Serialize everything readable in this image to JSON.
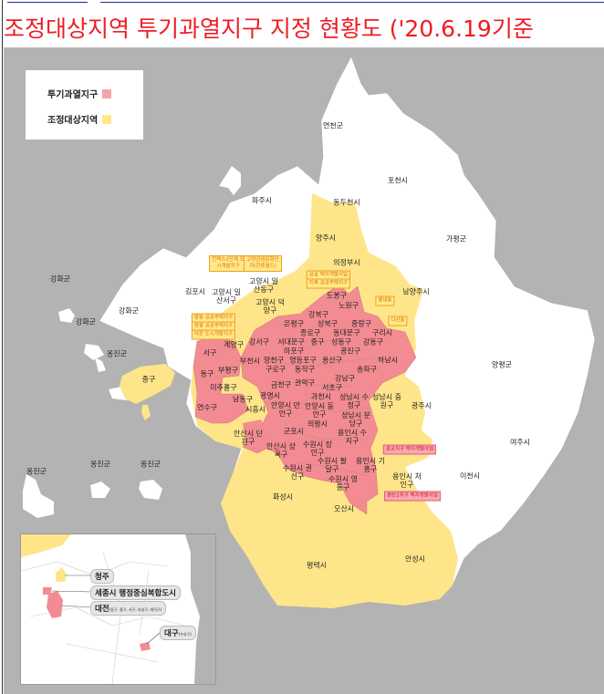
{
  "title": "조정대상지역 투기과열지구 지정 현황도 ('20.6.19기준",
  "legend": {
    "items": [
      {
        "label": "투기과열지구",
        "color": "#f4a4a8"
      },
      {
        "label": "조정대상지역",
        "color": "#ffe98c"
      }
    ]
  },
  "colors": {
    "speculation_overheated": "#f28b92",
    "adjustment_target": "#ffe58a",
    "unregulated": "#ffffff",
    "sea": "#b3b3b3",
    "title": "#ee1c25"
  },
  "regions": [
    {
      "name": "연천군",
      "status": "none"
    },
    {
      "name": "포천시",
      "status": "none"
    },
    {
      "name": "동두천시",
      "status": "none"
    },
    {
      "name": "파주시",
      "status": "none"
    },
    {
      "name": "양주시",
      "status": "adjustment"
    },
    {
      "name": "가평군",
      "status": "none"
    },
    {
      "name": "의정부시",
      "status": "adjustment"
    },
    {
      "name": "강화군",
      "status": "none"
    },
    {
      "name": "강화군",
      "status": "none"
    },
    {
      "name": "강화군",
      "status": "none"
    },
    {
      "name": "김포시",
      "status": "none"
    },
    {
      "name": "고양시 일산동구",
      "status": "adjustment"
    },
    {
      "name": "고양시 일산서구",
      "status": "adjustment"
    },
    {
      "name": "고양시 덕양구",
      "status": "adjustment"
    },
    {
      "name": "남양주시",
      "status": "adjustment"
    },
    {
      "name": "도봉구",
      "status": "overheated"
    },
    {
      "name": "노원구",
      "status": "overheated"
    },
    {
      "name": "강북구",
      "status": "overheated"
    },
    {
      "name": "은평구",
      "status": "overheated"
    },
    {
      "name": "성북구",
      "status": "overheated"
    },
    {
      "name": "종로구",
      "status": "overheated"
    },
    {
      "name": "중랑구",
      "status": "overheated"
    },
    {
      "name": "동대문구",
      "status": "overheated"
    },
    {
      "name": "서대문구",
      "status": "overheated"
    },
    {
      "name": "구리시",
      "status": "overheated"
    },
    {
      "name": "마포구",
      "status": "overheated"
    },
    {
      "name": "중구",
      "status": "overheated"
    },
    {
      "name": "성동구",
      "status": "overheated"
    },
    {
      "name": "광진구",
      "status": "overheated"
    },
    {
      "name": "강동구",
      "status": "overheated"
    },
    {
      "name": "강서구",
      "status": "overheated"
    },
    {
      "name": "계양구",
      "status": "adjustment"
    },
    {
      "name": "옹진군",
      "status": "none"
    },
    {
      "name": "서구",
      "status": "overheated"
    },
    {
      "name": "양천구",
      "status": "overheated"
    },
    {
      "name": "영등포구",
      "status": "overheated"
    },
    {
      "name": "용산구",
      "status": "overheated"
    },
    {
      "name": "하남시",
      "status": "overheated"
    },
    {
      "name": "부평구",
      "status": "adjustment"
    },
    {
      "name": "부천시",
      "status": "adjustment"
    },
    {
      "name": "동구",
      "status": "adjustment"
    },
    {
      "name": "구로구",
      "status": "overheated"
    },
    {
      "name": "동작구",
      "status": "overheated"
    },
    {
      "name": "송파구",
      "status": "overheated"
    },
    {
      "name": "양평군",
      "status": "none"
    },
    {
      "name": "중구",
      "status": "adjustment"
    },
    {
      "name": "강남구",
      "status": "overheated"
    },
    {
      "name": "관악구",
      "status": "overheated"
    },
    {
      "name": "서초구",
      "status": "overheated"
    },
    {
      "name": "미추홀구",
      "status": "adjustment"
    },
    {
      "name": "남동구",
      "status": "overheated"
    },
    {
      "name": "금천구",
      "status": "overheated"
    },
    {
      "name": "광명시",
      "status": "overheated"
    },
    {
      "name": "과천시",
      "status": "overheated"
    },
    {
      "name": "성남시 수정구",
      "status": "overheated"
    },
    {
      "name": "성남시 중원구",
      "status": "adjustment"
    },
    {
      "name": "광주시",
      "status": "none"
    },
    {
      "name": "연수구",
      "status": "overheated"
    },
    {
      "name": "시흥시",
      "status": "adjustment"
    },
    {
      "name": "안양시 만안구",
      "status": "overheated"
    },
    {
      "name": "안양시 동안구",
      "status": "overheated"
    },
    {
      "name": "성남시 분당구",
      "status": "overheated"
    },
    {
      "name": "의왕시",
      "status": "overheated"
    },
    {
      "name": "군포시",
      "status": "overheated"
    },
    {
      "name": "용인시 수지구",
      "status": "overheated"
    },
    {
      "name": "안산시 단원구",
      "status": "overheated"
    },
    {
      "name": "안산시 상록구",
      "status": "adjustment"
    },
    {
      "name": "수원시 장안구",
      "status": "overheated"
    },
    {
      "name": "수원시 팔달구",
      "status": "overheated"
    },
    {
      "name": "여주시",
      "status": "none"
    },
    {
      "name": "수원시 권선구",
      "status": "overheated"
    },
    {
      "name": "수원시 영통구",
      "status": "overheated"
    },
    {
      "name": "용인시 기흥구",
      "status": "overheated"
    },
    {
      "name": "옹진군",
      "status": "none"
    },
    {
      "name": "옹진군",
      "status": "none"
    },
    {
      "name": "옹진군",
      "status": "none"
    },
    {
      "name": "용인시 처인구",
      "status": "adjustment"
    },
    {
      "name": "이천시",
      "status": "none"
    },
    {
      "name": "화성시",
      "status": "adjustment"
    },
    {
      "name": "오산시",
      "status": "adjustment"
    },
    {
      "name": "평택시",
      "status": "adjustment"
    },
    {
      "name": "안성시",
      "status": "adjustment"
    }
  ],
  "callouts": [
    {
      "text": "킨텍스1단계 도시개발지구",
      "kind": "adjustment-exception"
    },
    {
      "text": "고양관광문화단지(한류월드)",
      "kind": "adjustment-exception"
    },
    {
      "text": "삼송 택지개발사업",
      "kind": "adjustment-exception"
    },
    {
      "text": "지축 공공주택지구",
      "kind": "adjustment-exception"
    },
    {
      "text": "별내동",
      "kind": "adjustment-exception"
    },
    {
      "text": "다산동",
      "kind": "adjustment-exception"
    },
    {
      "text": "향동 공공주택지구",
      "kind": "adjustment-exception"
    },
    {
      "text": "장항 공공주택지구",
      "kind": "adjustment-exception"
    },
    {
      "text": "덕은 도시개발지구",
      "kind": "adjustment-exception"
    },
    {
      "text": "광교지구 택지개발사업",
      "kind": "overheated-exception"
    },
    {
      "text": "동탄2지구 택지개발사업",
      "kind": "overheated-exception"
    }
  ],
  "inset": {
    "labels": [
      {
        "name": "청주",
        "sub": ""
      },
      {
        "name": "세종시 행정중심복합도시",
        "sub": ""
      },
      {
        "name": "대전",
        "sub": "(동구, 중구, 서구, 유성구, 대덕구)"
      },
      {
        "name": "대구",
        "sub": "(수성구)"
      }
    ]
  }
}
